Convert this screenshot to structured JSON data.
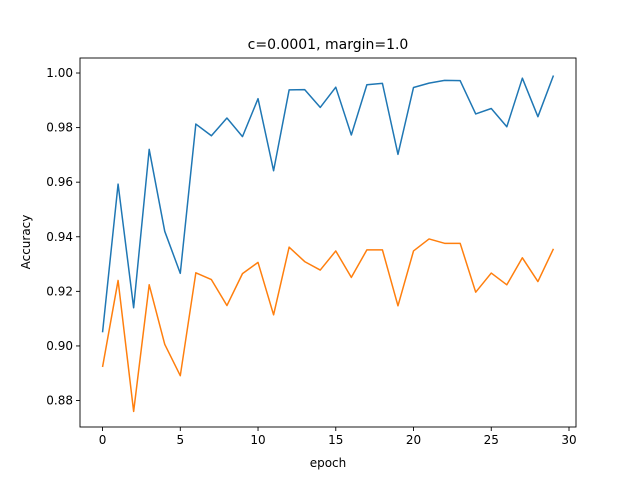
{
  "chart_data": {
    "type": "line",
    "title": "c=0.0001, margin=1.0",
    "xlabel": "epoch",
    "ylabel": "Accuracy",
    "xlim": [
      -1.45,
      30.45
    ],
    "ylim": [
      0.8703,
      1.0055
    ],
    "xticks": [
      0,
      5,
      10,
      15,
      20,
      25,
      30
    ],
    "xtick_labels": [
      "0",
      "5",
      "10",
      "15",
      "20",
      "25",
      "30"
    ],
    "yticks": [
      0.88,
      0.9,
      0.92,
      0.94,
      0.96,
      0.98,
      1.0
    ],
    "ytick_labels": [
      "0.88",
      "0.90",
      "0.92",
      "0.94",
      "0.96",
      "0.98",
      "1.00"
    ],
    "grid": false,
    "legend": false,
    "x": [
      0,
      1,
      2,
      3,
      4,
      5,
      6,
      7,
      8,
      9,
      10,
      11,
      12,
      13,
      14,
      15,
      16,
      17,
      18,
      19,
      20,
      21,
      22,
      23,
      24,
      25,
      26,
      27,
      28,
      29
    ],
    "series": [
      {
        "color": "#1f77b4",
        "values": [
          0.905,
          0.9593,
          0.914,
          0.972,
          0.942,
          0.9266,
          0.9813,
          0.977,
          0.9835,
          0.9767,
          0.9906,
          0.9642,
          0.9938,
          0.9939,
          0.9874,
          0.9948,
          0.9773,
          0.9957,
          0.9962,
          0.9702,
          0.9947,
          0.9963,
          0.9973,
          0.9972,
          0.985,
          0.987,
          0.9803,
          0.9981,
          0.984,
          0.9991
        ]
      },
      {
        "color": "#ff7f0e",
        "values": [
          0.8923,
          0.924,
          0.876,
          0.9224,
          0.9006,
          0.8891,
          0.9268,
          0.9243,
          0.9148,
          0.9265,
          0.9306,
          0.9114,
          0.9362,
          0.9309,
          0.9278,
          0.9348,
          0.9251,
          0.9352,
          0.9352,
          0.9147,
          0.9348,
          0.9392,
          0.9376,
          0.9376,
          0.9197,
          0.9267,
          0.9224,
          0.9323,
          0.9236,
          0.9356
        ]
      }
    ]
  }
}
